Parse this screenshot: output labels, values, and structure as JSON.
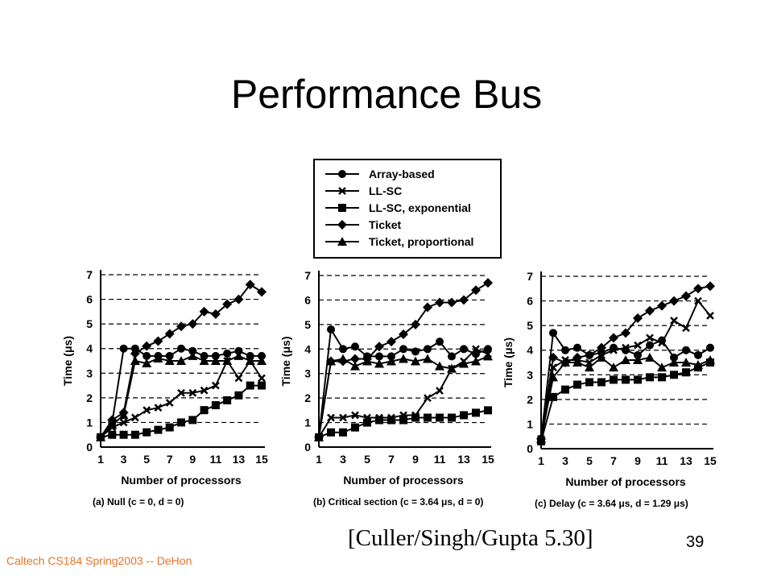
{
  "slide": {
    "title": "Performance Bus",
    "footer": "Caltech CS184 Spring2003 -- DeHon",
    "page_number": "39",
    "citation": "[Culler/Singh/Gupta 5.30]"
  },
  "chart_data": [
    {
      "type": "line",
      "caption": "(a) Null (c = 0, d = 0)",
      "xlabel": "Number of processors",
      "ylabel": "Time (μs)",
      "ylim": [
        0,
        7
      ],
      "xlim": [
        1,
        15
      ],
      "xticks": [
        1,
        3,
        5,
        7,
        9,
        11,
        13,
        15
      ],
      "yticks": [
        0,
        1,
        2,
        3,
        4,
        5,
        6,
        7
      ],
      "grid": "dashed horizontal",
      "x": [
        1,
        2,
        3,
        4,
        5,
        6,
        7,
        8,
        9,
        10,
        11,
        12,
        13,
        14,
        15
      ],
      "series": [
        {
          "name": "Array-based",
          "marker": "circle",
          "values": [
            0.4,
            1.0,
            4.0,
            4.0,
            3.7,
            3.7,
            3.7,
            4.0,
            3.9,
            3.7,
            3.7,
            3.8,
            3.9,
            3.7,
            3.7
          ]
        },
        {
          "name": "LL-SC",
          "marker": "x",
          "values": [
            0.4,
            0.8,
            1.0,
            1.2,
            1.5,
            1.6,
            1.8,
            2.2,
            2.2,
            2.3,
            2.5,
            3.5,
            2.8,
            3.5,
            2.8
          ]
        },
        {
          "name": "LL-SC, exponential",
          "marker": "square",
          "values": [
            0.4,
            0.5,
            0.5,
            0.5,
            0.6,
            0.7,
            0.8,
            1.0,
            1.1,
            1.5,
            1.7,
            1.9,
            2.1,
            2.5,
            2.5
          ]
        },
        {
          "name": "Ticket",
          "marker": "diamond",
          "values": [
            0.4,
            1.1,
            1.4,
            3.8,
            4.1,
            4.3,
            4.6,
            4.9,
            5.0,
            5.5,
            5.4,
            5.8,
            6.0,
            6.6,
            6.3
          ]
        },
        {
          "name": "Ticket, proportional",
          "marker": "triangle",
          "values": [
            0.4,
            0.9,
            1.3,
            3.5,
            3.4,
            3.6,
            3.5,
            3.5,
            3.7,
            3.5,
            3.5,
            3.5,
            3.7,
            3.5,
            3.5
          ]
        }
      ]
    },
    {
      "type": "line",
      "caption": "(b) Critical section (c = 3.64 μs, d = 0)",
      "xlabel": "Number of processors",
      "ylabel": "Time (μs)",
      "ylim": [
        0,
        7
      ],
      "xlim": [
        1,
        15
      ],
      "xticks": [
        1,
        3,
        5,
        7,
        9,
        11,
        13,
        15
      ],
      "yticks": [
        0,
        1,
        2,
        3,
        4,
        5,
        6,
        7
      ],
      "grid": "dashed horizontal",
      "x": [
        1,
        2,
        3,
        4,
        5,
        6,
        7,
        8,
        9,
        10,
        11,
        12,
        13,
        14,
        15
      ],
      "series": [
        {
          "name": "Array-based",
          "marker": "circle",
          "values": [
            0.4,
            4.8,
            4.0,
            4.1,
            3.7,
            3.7,
            3.7,
            4.0,
            3.9,
            4.0,
            4.3,
            3.7,
            4.0,
            3.8,
            4.0
          ]
        },
        {
          "name": "LL-SC",
          "marker": "x",
          "values": [
            0.4,
            1.2,
            1.2,
            1.3,
            1.2,
            1.2,
            1.2,
            1.3,
            1.3,
            2.0,
            2.3,
            3.2,
            3.5,
            4.0,
            3.8
          ]
        },
        {
          "name": "LL-SC, exponential",
          "marker": "square",
          "values": [
            0.4,
            0.6,
            0.6,
            0.8,
            1.0,
            1.1,
            1.1,
            1.1,
            1.2,
            1.2,
            1.2,
            1.2,
            1.3,
            1.4,
            1.5
          ]
        },
        {
          "name": "Ticket",
          "marker": "diamond",
          "values": [
            0.4,
            3.5,
            3.5,
            3.6,
            3.6,
            4.1,
            4.3,
            4.6,
            5.0,
            5.7,
            5.9,
            5.9,
            6.0,
            6.4,
            6.7
          ]
        },
        {
          "name": "Ticket, proportional",
          "marker": "triangle",
          "values": [
            0.4,
            3.5,
            3.6,
            3.3,
            3.5,
            3.4,
            3.5,
            3.6,
            3.5,
            3.6,
            3.3,
            3.2,
            3.4,
            3.5,
            3.7
          ]
        }
      ]
    },
    {
      "type": "line",
      "caption": "(c) Delay (c = 3.64 μs, d = 1.29 μs)",
      "xlabel": "Number of processors",
      "ylabel": "Time (μs)",
      "ylim": [
        0,
        7
      ],
      "xlim": [
        1,
        15
      ],
      "xticks": [
        1,
        3,
        5,
        7,
        9,
        11,
        13,
        15
      ],
      "yticks": [
        0,
        1,
        2,
        3,
        4,
        5,
        6,
        7
      ],
      "grid": "dashed horizontal",
      "x": [
        1,
        2,
        3,
        4,
        5,
        6,
        7,
        8,
        9,
        10,
        11,
        12,
        13,
        14,
        15
      ],
      "series": [
        {
          "name": "Array-based",
          "marker": "circle",
          "values": [
            0.4,
            4.7,
            4.0,
            4.1,
            3.8,
            3.9,
            4.1,
            4.0,
            3.8,
            4.2,
            4.4,
            3.7,
            4.0,
            3.8,
            4.1
          ]
        },
        {
          "name": "LL-SC",
          "marker": "x",
          "values": [
            0.4,
            3.3,
            3.6,
            3.6,
            3.5,
            3.8,
            4.0,
            4.1,
            4.2,
            4.5,
            4.3,
            5.2,
            4.9,
            6.0,
            5.4
          ]
        },
        {
          "name": "LL-SC, exponential",
          "marker": "square",
          "values": [
            0.3,
            2.1,
            2.4,
            2.6,
            2.7,
            2.7,
            2.8,
            2.8,
            2.8,
            2.9,
            2.9,
            3.0,
            3.1,
            3.3,
            3.5
          ]
        },
        {
          "name": "Ticket",
          "marker": "diamond",
          "values": [
            0.4,
            3.7,
            3.5,
            3.7,
            3.8,
            4.1,
            4.5,
            4.7,
            5.3,
            5.6,
            5.8,
            6.0,
            6.2,
            6.5,
            6.6
          ]
        },
        {
          "name": "Ticket, proportional",
          "marker": "triangle",
          "values": [
            0.4,
            2.9,
            3.5,
            3.5,
            3.3,
            3.7,
            3.3,
            3.6,
            3.6,
            3.7,
            3.3,
            3.5,
            3.5,
            3.4,
            3.6
          ]
        }
      ]
    }
  ]
}
